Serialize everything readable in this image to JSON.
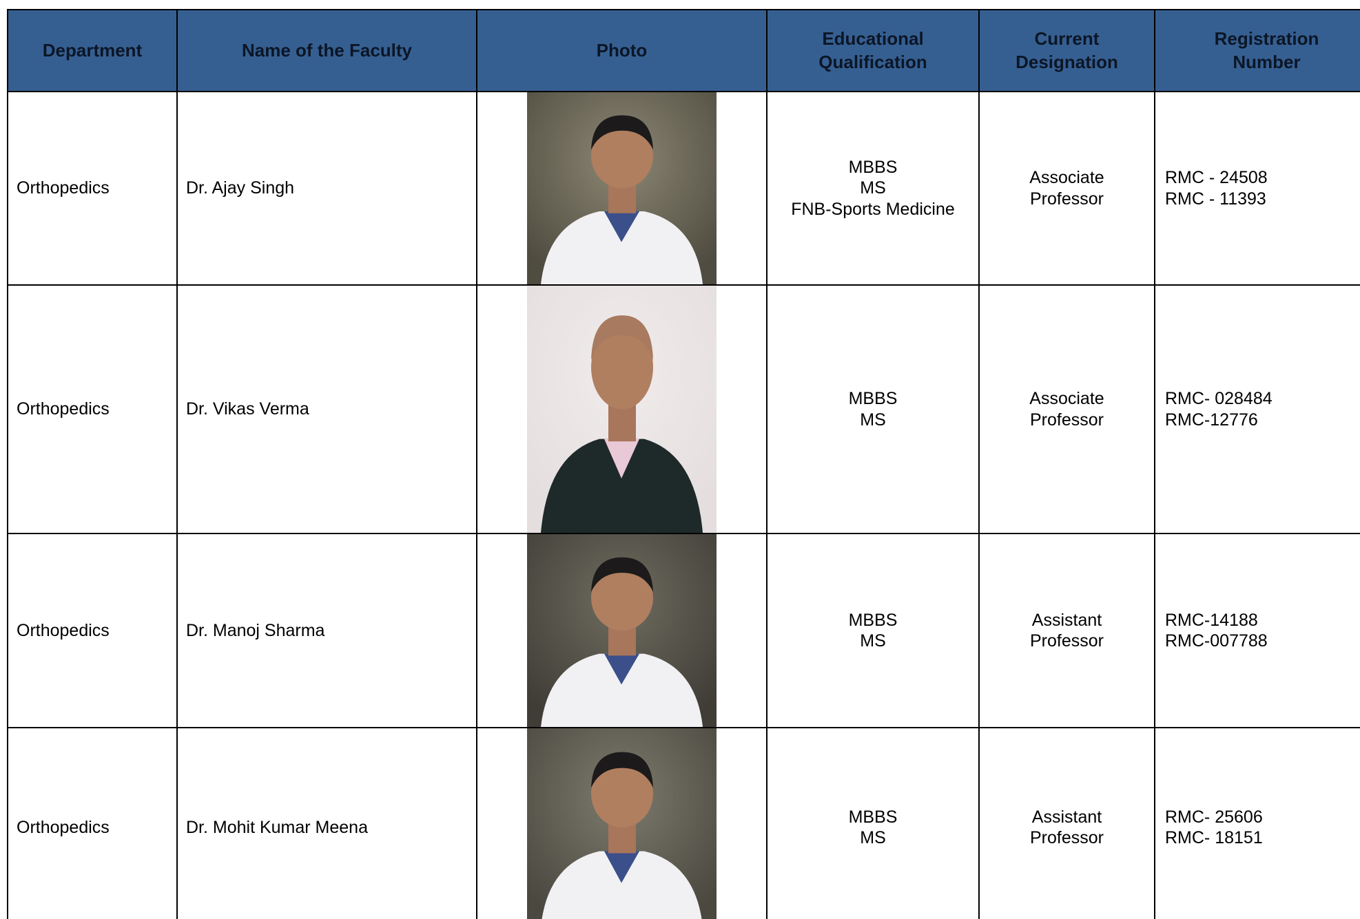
{
  "table": {
    "headers": [
      "Department",
      "Name of the Faculty",
      "Photo",
      "Educational Qualification",
      "Current Designation",
      "Registration Number"
    ],
    "rows": [
      {
        "department": "Orthopedics",
        "name": "Dr. Ajay Singh",
        "qualification": [
          "MBBS",
          "MS",
          "FNB-Sports Medicine"
        ],
        "designation": "Associate Professor",
        "registration": [
          "RMC - 24508",
          "RMC - 11393"
        ]
      },
      {
        "department": "Orthopedics",
        "name": "Dr. Vikas Verma",
        "qualification": [
          "MBBS",
          "MS"
        ],
        "designation": "Associate Professor",
        "registration": [
          "RMC- 028484",
          "RMC-12776"
        ]
      },
      {
        "department": "Orthopedics",
        "name": "Dr. Manoj Sharma",
        "qualification": [
          "MBBS",
          "MS"
        ],
        "designation": "Assistant Professor",
        "registration": [
          "RMC-14188",
          "RMC-007788"
        ]
      },
      {
        "department": "Orthopedics",
        "name": "Dr. Mohit Kumar Meena",
        "qualification": [
          "MBBS",
          "MS"
        ],
        "designation": "Assistant Professor",
        "registration": [
          "RMC- 25606",
          "RMC- 18151"
        ]
      }
    ]
  }
}
